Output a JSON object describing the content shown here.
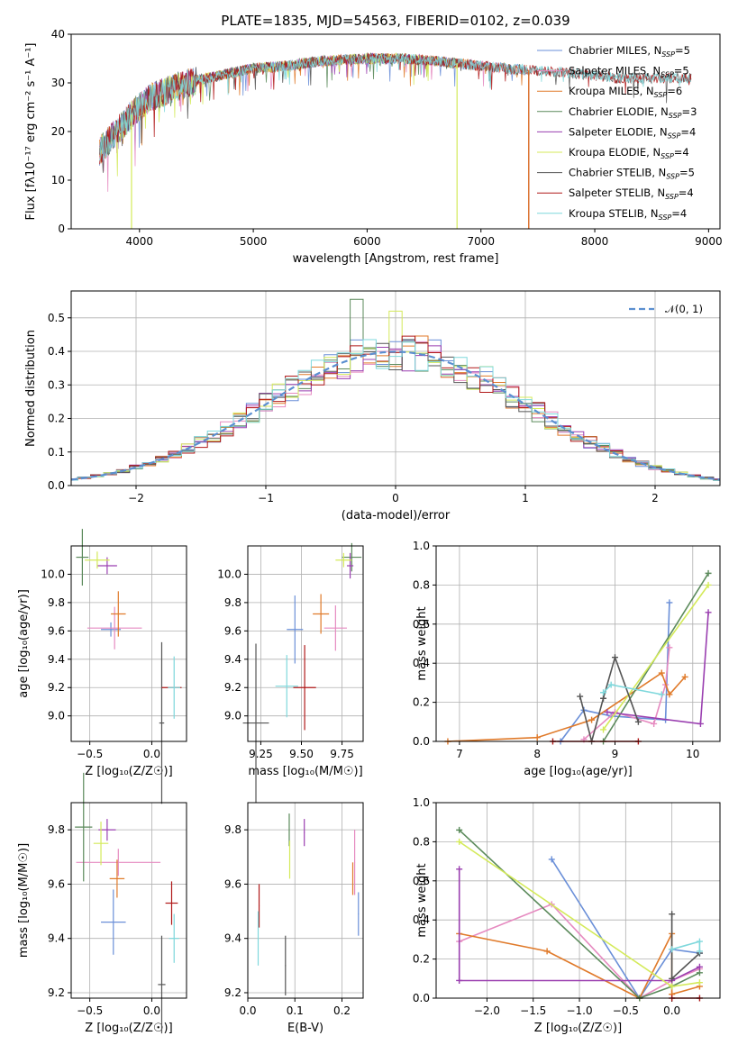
{
  "palette": {
    "chabrier_miles": "#6a8fd8",
    "salpeter_miles": "#e68ac0",
    "kroupa_miles": "#e07a2a",
    "chabrier_elodie": "#5b8a5b",
    "salpeter_elodie": "#9a3fb0",
    "kroupa_elodie": "#d4ea5a",
    "chabrier_stelib": "#555555",
    "salpeter_stelib": "#b01818",
    "kroupa_stelib": "#7fd8dc",
    "normal": "#5b8fd0"
  },
  "chart_data": [
    {
      "id": "spectrum",
      "type": "line",
      "title": "PLATE=1835, MJD=54563, FIBERID=0102, z=0.039",
      "xlabel": "wavelength [Angstrom, rest frame]",
      "ylabel": "Flux [f$_\\lambda$10$^{-17}$ erg cm$^{-2}$ s$^{-1}$ A$^{-1}$]",
      "ylabel_display": "Flux [fλ10⁻¹⁷ erg cm⁻² s⁻¹ A⁻¹]",
      "xlim": [
        3400,
        9100
      ],
      "ylim": [
        0,
        40
      ],
      "xticks": [
        4000,
        5000,
        6000,
        7000,
        8000,
        9000
      ],
      "yticks": [
        0,
        10,
        20,
        30,
        40
      ],
      "legend_position": "top-right",
      "series": [
        {
          "key": "chabrier_miles",
          "name": "Chabrier MILES, N$_{SSP}$=5",
          "label_display": "Chabrier MILES, N_SSP=5"
        },
        {
          "key": "salpeter_miles",
          "name": "Salpeter MILES, N$_{SSP}$=5",
          "label_display": "Salpeter MILES, N_SSP=5"
        },
        {
          "key": "kroupa_miles",
          "name": "Kroupa MILES, N$_{SSP}$=6",
          "label_display": "Kroupa MILES, N_SSP=6"
        },
        {
          "key": "chabrier_elodie",
          "name": "Chabrier ELODIE, N$_{SSP}$=3",
          "label_display": "Chabrier ELODIE, N_SSP=3"
        },
        {
          "key": "salpeter_elodie",
          "name": "Salpeter ELODIE, N$_{SSP}$=4",
          "label_display": "Salpeter ELODIE, N_SSP=4"
        },
        {
          "key": "kroupa_elodie",
          "name": "Kroupa ELODIE, N$_{SSP}$=4",
          "label_display": "Kroupa ELODIE, N_SSP=4"
        },
        {
          "key": "chabrier_stelib",
          "name": "Chabrier STELIB, N$_{SSP}$=5",
          "label_display": "Chabrier STELIB, N_SSP=5"
        },
        {
          "key": "salpeter_stelib",
          "name": "Salpeter STELIB, N$_{SSP}$=4",
          "label_display": "Salpeter STELIB, N_SSP=4"
        },
        {
          "key": "kroupa_stelib",
          "name": "Kroupa STELIB, N$_{SSP}$=4",
          "label_display": "Kroupa STELIB, N_SSP=4"
        }
      ],
      "continuum": {
        "x": [
          3650,
          3800,
          3950,
          4100,
          4300,
          4500,
          4800,
          5000,
          5300,
          5600,
          6000,
          6300,
          6600,
          6800,
          7200,
          7500,
          7800,
          8200,
          8500,
          8850
        ],
        "y": [
          16,
          20,
          24,
          27,
          29,
          30.5,
          32,
          33,
          33.5,
          34.5,
          35,
          35,
          34.5,
          34,
          33,
          32.5,
          32,
          31,
          31,
          31
        ]
      },
      "cutoffs": [
        {
          "key": "kroupa_elodie",
          "x": 3930
        },
        {
          "key": "kroupa_elodie",
          "x": 6790
        },
        {
          "key": "salpeter_stelib",
          "x": 7420
        },
        {
          "key": "kroupa_miles",
          "x": 7420
        }
      ],
      "end_wavelength": {
        "miles": 7400,
        "elodie": 6800,
        "stelib": 8850
      }
    },
    {
      "id": "residuals",
      "type": "histogram",
      "xlabel": "(data-model)/error",
      "ylabel": "Normed distribution",
      "xlim": [
        -2.5,
        2.5
      ],
      "ylim": [
        0,
        0.58
      ],
      "xticks": [
        -2,
        -1,
        0,
        1,
        2
      ],
      "yticks": [
        0.0,
        0.1,
        0.2,
        0.3,
        0.4,
        0.5
      ],
      "grid": true,
      "legend_position": "top-right",
      "reference": {
        "name": "$\\mathcal{N}(0,1)$",
        "label_display": "𝒩(0, 1)",
        "mean": 0,
        "sigma": 1
      },
      "bin_width": 0.1,
      "peak_values": [
        {
          "key": "chabrier_elodie",
          "x": -0.25,
          "y": 0.555
        },
        {
          "key": "kroupa_elodie",
          "x": 0.05,
          "y": 0.52
        }
      ]
    },
    {
      "id": "age_vs_Z",
      "type": "errorbar",
      "xlabel": "Z [log$_{10}$(Z/Z$_\\odot$)]",
      "label_display_x": "Z [log₁₀(Z/Z☉)]",
      "ylabel": "age  [log$_{10}$(age/yr)]",
      "label_display_y": "age  [log₁₀(age/yr)]",
      "xlim": [
        -0.65,
        0.28
      ],
      "ylim": [
        8.82,
        10.2
      ],
      "xticks": [
        -0.5,
        0.0
      ],
      "yticks": [
        9.0,
        9.2,
        9.4,
        9.6,
        9.8,
        10.0
      ],
      "grid": true,
      "points": [
        {
          "key": "chabrier_miles",
          "x": -0.33,
          "y": 9.61,
          "xerr": 0.08,
          "yerr": 0.05
        },
        {
          "key": "salpeter_miles",
          "x": -0.3,
          "y": 9.62,
          "xerr": 0.22,
          "yerr": 0.15
        },
        {
          "key": "kroupa_miles",
          "x": -0.27,
          "y": 9.72,
          "xerr": 0.06,
          "yerr": 0.16
        },
        {
          "key": "chabrier_elodie",
          "x": -0.56,
          "y": 10.12,
          "xerr": 0.05,
          "yerr": 0.2
        },
        {
          "key": "salpeter_elodie",
          "x": -0.36,
          "y": 10.06,
          "xerr": 0.08,
          "yerr": 0.06
        },
        {
          "key": "kroupa_elodie",
          "x": -0.44,
          "y": 10.1,
          "xerr": 0.1,
          "yerr": 0.06
        },
        {
          "key": "chabrier_stelib",
          "x": 0.08,
          "y": 8.95,
          "xerr": 0.02,
          "yerr": 0.57
        },
        {
          "key": "salpeter_stelib",
          "x": 0.16,
          "y": 9.2,
          "xerr": 0.08,
          "yerr": 0.0
        },
        {
          "key": "kroupa_stelib",
          "x": 0.18,
          "y": 9.2,
          "xerr": 0.05,
          "yerr": 0.22
        }
      ]
    },
    {
      "id": "age_vs_mass",
      "type": "errorbar",
      "xlabel": "mass [log$_{10}$(M/M$_\\odot$)]",
      "label_display_x": "mass [log₁₀(M/M☉)]",
      "ylabel": "",
      "xlim": [
        9.17,
        9.88
      ],
      "ylim": [
        8.82,
        10.2
      ],
      "xticks": [
        9.25,
        9.5,
        9.75
      ],
      "xtick_labels": [
        "9.25",
        "9.50",
        "9.75"
      ],
      "yticks": [
        9.0,
        9.2,
        9.4,
        9.6,
        9.8,
        10.0
      ],
      "grid": true,
      "points": [
        {
          "key": "chabrier_miles",
          "x": 9.46,
          "y": 9.61,
          "xerr": 0.05,
          "yerr": 0.24
        },
        {
          "key": "salpeter_miles",
          "x": 9.71,
          "y": 9.62,
          "xerr": 0.07,
          "yerr": 0.16
        },
        {
          "key": "kroupa_miles",
          "x": 9.62,
          "y": 9.72,
          "xerr": 0.05,
          "yerr": 0.14
        },
        {
          "key": "chabrier_elodie",
          "x": 9.81,
          "y": 10.12,
          "xerr": 0.06,
          "yerr": 0.1
        },
        {
          "key": "salpeter_elodie",
          "x": 9.8,
          "y": 10.06,
          "xerr": 0.02,
          "yerr": 0.09
        },
        {
          "key": "kroupa_elodie",
          "x": 9.76,
          "y": 10.1,
          "xerr": 0.05,
          "yerr": 0.05
        },
        {
          "key": "chabrier_stelib",
          "x": 9.22,
          "y": 8.95,
          "xerr": 0.08,
          "yerr": 0.56
        },
        {
          "key": "salpeter_stelib",
          "x": 9.52,
          "y": 9.2,
          "xerr": 0.07,
          "yerr": 0.3
        },
        {
          "key": "kroupa_stelib",
          "x": 9.41,
          "y": 9.21,
          "xerr": 0.07,
          "yerr": 0.22
        }
      ]
    },
    {
      "id": "mass_weight_vs_age",
      "type": "line",
      "xlabel": "age  [log$_{10}$(age/yr)]",
      "label_display_x": "age  [log₁₀(age/yr)]",
      "ylabel": "mass weight",
      "xlim": [
        6.7,
        10.35
      ],
      "ylim": [
        0,
        1.0
      ],
      "xticks": [
        7,
        8,
        9,
        10
      ],
      "yticks": [
        0.0,
        0.2,
        0.4,
        0.6,
        0.8,
        1.0
      ],
      "grid": true,
      "series": [
        {
          "key": "chabrier_miles",
          "x": [
            8.3,
            8.6,
            8.95,
            9.65,
            9.7
          ],
          "y": [
            0.0,
            0.16,
            0.13,
            0.11,
            0.71
          ]
        },
        {
          "key": "salpeter_miles",
          "x": [
            8.6,
            9.0,
            9.5,
            9.65,
            9.7
          ],
          "y": [
            0.01,
            0.15,
            0.09,
            0.29,
            0.48
          ]
        },
        {
          "key": "kroupa_miles",
          "x": [
            6.85,
            8.0,
            8.7,
            9.6,
            9.7,
            9.9
          ],
          "y": [
            0.0,
            0.02,
            0.11,
            0.35,
            0.24,
            0.33
          ]
        },
        {
          "key": "chabrier_elodie",
          "x": [
            8.85,
            10.2
          ],
          "y": [
            0.0,
            0.86
          ]
        },
        {
          "key": "salpeter_elodie",
          "x": [
            8.9,
            10.1,
            10.2
          ],
          "y": [
            0.15,
            0.09,
            0.66
          ]
        },
        {
          "key": "kroupa_elodie",
          "x": [
            8.85,
            10.2
          ],
          "y": [
            0.06,
            0.8
          ]
        },
        {
          "key": "chabrier_stelib",
          "x": [
            8.55,
            8.7,
            8.85,
            9.0,
            9.3
          ],
          "y": [
            0.23,
            0.0,
            0.22,
            0.43,
            0.1
          ]
        },
        {
          "key": "salpeter_stelib",
          "x": [
            8.2,
            9.3
          ],
          "y": [
            0.0,
            0.0
          ]
        },
        {
          "key": "kroupa_stelib",
          "x": [
            8.85,
            8.95,
            9.6
          ],
          "y": [
            0.25,
            0.29,
            0.24
          ]
        }
      ]
    },
    {
      "id": "mass_vs_Z",
      "type": "errorbar",
      "xlabel": "Z [log$_{10}$(Z/Z$_\\odot$)]",
      "label_display_x": "Z [log₁₀(Z/Z☉)]",
      "ylabel": "mass [log$_{10}$(M/M$_\\odot$)]",
      "label_display_y": "mass [log₁₀(M/M☉)]",
      "xlim": [
        -0.65,
        0.28
      ],
      "ylim": [
        9.18,
        9.9
      ],
      "xticks": [
        -0.5,
        0.0
      ],
      "yticks": [
        9.2,
        9.4,
        9.6,
        9.8
      ],
      "grid": true,
      "points": [
        {
          "key": "chabrier_miles",
          "x": -0.31,
          "y": 9.46,
          "xerr": 0.1,
          "yerr": 0.12
        },
        {
          "key": "salpeter_miles",
          "x": -0.27,
          "y": 9.68,
          "xerr": 0.34,
          "yerr": 0.05
        },
        {
          "key": "kroupa_miles",
          "x": -0.28,
          "y": 9.62,
          "xerr": 0.06,
          "yerr": 0.07
        },
        {
          "key": "chabrier_elodie",
          "x": -0.55,
          "y": 9.81,
          "xerr": 0.07,
          "yerr": 0.2
        },
        {
          "key": "salpeter_elodie",
          "x": -0.36,
          "y": 9.8,
          "xerr": 0.07,
          "yerr": 0.04
        },
        {
          "key": "kroupa_elodie",
          "x": -0.41,
          "y": 9.75,
          "xerr": 0.06,
          "yerr": 0.08
        },
        {
          "key": "chabrier_stelib",
          "x": 0.08,
          "y": 9.23,
          "xerr": 0.03,
          "yerr": 0.18
        },
        {
          "key": "salpeter_stelib",
          "x": 0.16,
          "y": 9.53,
          "xerr": 0.05,
          "yerr": 0.08
        },
        {
          "key": "kroupa_stelib",
          "x": 0.18,
          "y": 9.4,
          "xerr": 0.04,
          "yerr": 0.09
        }
      ]
    },
    {
      "id": "mass_vs_ebv",
      "type": "errorbar",
      "xlabel": "E(B-V)",
      "ylabel": "",
      "xlim": [
        0.0,
        0.245
      ],
      "ylim": [
        9.18,
        9.9
      ],
      "xticks": [
        0.0,
        0.1,
        0.2
      ],
      "yticks": [
        9.2,
        9.4,
        9.6,
        9.8
      ],
      "grid": true,
      "points": [
        {
          "key": "chabrier_miles",
          "x": 0.235,
          "y": 9.49,
          "xerr": 0,
          "yerr": 0.08
        },
        {
          "key": "salpeter_miles",
          "x": 0.227,
          "y": 9.68,
          "xerr": 0,
          "yerr": 0.12
        },
        {
          "key": "kroupa_miles",
          "x": 0.223,
          "y": 9.62,
          "xerr": 0,
          "yerr": 0.06
        },
        {
          "key": "chabrier_elodie",
          "x": 0.088,
          "y": 9.8,
          "xerr": 0,
          "yerr": 0.06
        },
        {
          "key": "salpeter_elodie",
          "x": 0.12,
          "y": 9.79,
          "xerr": 0,
          "yerr": 0.05
        },
        {
          "key": "kroupa_elodie",
          "x": 0.089,
          "y": 9.69,
          "xerr": 0,
          "yerr": 0.07
        },
        {
          "key": "chabrier_stelib",
          "x": 0.08,
          "y": 9.3,
          "xerr": 0,
          "yerr": 0.11
        },
        {
          "key": "salpeter_stelib",
          "x": 0.024,
          "y": 9.52,
          "xerr": 0,
          "yerr": 0.08
        },
        {
          "key": "kroupa_stelib",
          "x": 0.022,
          "y": 9.4,
          "xerr": 0,
          "yerr": 0.1
        }
      ]
    },
    {
      "id": "mass_weight_vs_Z",
      "type": "line",
      "xlabel": "Z [log$_{10}$(Z/Z$_\\odot$)]",
      "label_display_x": "Z [log₁₀(Z/Z☉)]",
      "ylabel": "mass weight",
      "xlim": [
        -2.55,
        0.52
      ],
      "ylim": [
        0,
        1.0
      ],
      "xticks": [
        -2.0,
        -1.5,
        -1.0,
        -0.5,
        0.0
      ],
      "xtick_labels": [
        "−2.0",
        "−1.5",
        "−1.0",
        "−0.5",
        "0.0"
      ],
      "yticks": [
        0.0,
        0.2,
        0.4,
        0.6,
        0.8,
        1.0
      ],
      "grid": true,
      "series": [
        {
          "key": "chabrier_miles",
          "x": [
            -1.3,
            -0.35,
            0.0,
            0.3
          ],
          "y": [
            0.71,
            0.0,
            0.25,
            0.23
          ]
        },
        {
          "key": "salpeter_miles",
          "x": [
            -2.3,
            -1.3,
            -0.35,
            0.0,
            0.3
          ],
          "y": [
            0.29,
            0.48,
            0.0,
            0.09,
            0.15
          ]
        },
        {
          "key": "kroupa_miles",
          "x": [
            -2.3,
            -1.35,
            -0.35,
            0.0,
            0.0,
            0.3
          ],
          "y": [
            0.33,
            0.24,
            0.0,
            0.33,
            0.02,
            0.06
          ]
        },
        {
          "key": "chabrier_elodie",
          "x": [
            -2.3,
            -0.35,
            0.0,
            0.3
          ],
          "y": [
            0.86,
            0.0,
            0.06,
            0.13
          ]
        },
        {
          "key": "salpeter_elodie",
          "x": [
            -2.3,
            -2.3,
            0.0,
            0.3
          ],
          "y": [
            0.66,
            0.09,
            0.09,
            0.16
          ]
        },
        {
          "key": "kroupa_elodie",
          "x": [
            -2.3,
            0.0,
            0.3
          ],
          "y": [
            0.8,
            0.06,
            0.08
          ]
        },
        {
          "key": "chabrier_stelib",
          "x": [
            0.0,
            0.0,
            0.3
          ],
          "y": [
            0.43,
            0.1,
            0.23
          ]
        },
        {
          "key": "salpeter_stelib",
          "x": [
            0.0,
            0.3
          ],
          "y": [
            0.0,
            0.0
          ]
        },
        {
          "key": "kroupa_stelib",
          "x": [
            0.0,
            0.3,
            0.3
          ],
          "y": [
            0.25,
            0.29,
            0.24
          ]
        }
      ]
    }
  ]
}
